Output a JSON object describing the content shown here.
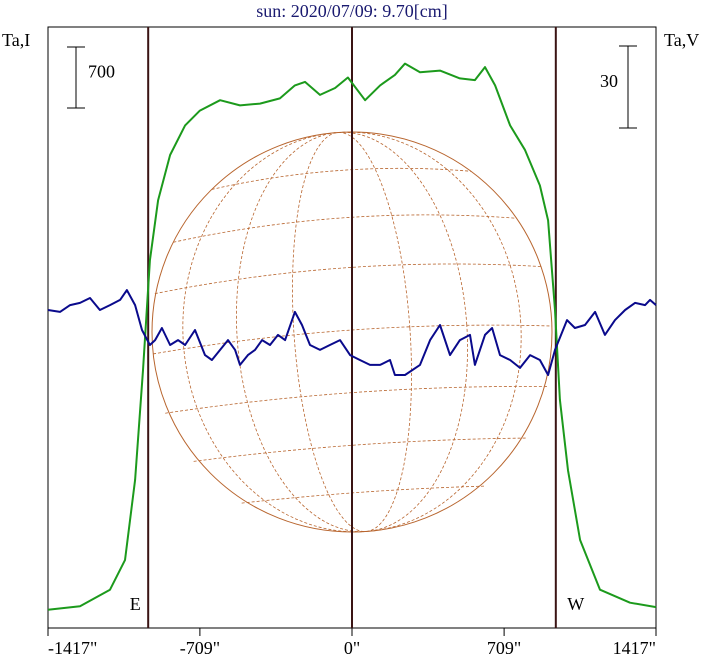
{
  "chart_data": {
    "type": "line",
    "title": "sun: 2020/07/09: 9.70[cm]",
    "y_label": "Ta,I",
    "y2_label": "Ta,V",
    "xlim": [
      -1417,
      1417
    ],
    "xticks": [
      {
        "value": -1417,
        "label": "-1417\""
      },
      {
        "value": -709,
        "label": "-709\""
      },
      {
        "value": 0,
        "label": "0\""
      },
      {
        "value": 709,
        "label": "709\""
      },
      {
        "value": 1417,
        "label": "1417\""
      }
    ],
    "ylim": [
      0,
      6900
    ],
    "y2lim": [
      -110,
      110
    ],
    "i_scale_bar": 700,
    "v_scale_bar": 30,
    "vlines": [
      -950,
      0,
      950
    ],
    "limb_labels": [
      "E",
      "W"
    ],
    "series": [
      {
        "name": "Ta,I",
        "color": "#1c9a1c",
        "x": [
          -1417,
          -1268,
          -1128,
          -1058,
          -1011,
          -974,
          -942,
          -904,
          -848,
          -778,
          -709,
          -615,
          -522,
          -429,
          -336,
          -266,
          -219,
          -149,
          -79,
          -19,
          61,
          131,
          200,
          247,
          317,
          410,
          503,
          573,
          620,
          667,
          737,
          806,
          876,
          914,
          946,
          969,
          1007,
          1063,
          1156,
          1296,
          1417
        ],
        "values": [
          210,
          250,
          440,
          780,
          1700,
          2960,
          4220,
          4910,
          5430,
          5770,
          5940,
          6060,
          6000,
          6020,
          6080,
          6230,
          6270,
          6120,
          6200,
          6320,
          6060,
          6230,
          6350,
          6480,
          6380,
          6400,
          6310,
          6290,
          6440,
          6230,
          5770,
          5490,
          5080,
          4680,
          3650,
          2620,
          1810,
          1010,
          440,
          290,
          240
        ]
      },
      {
        "name": "Ta,V",
        "color": "#0a0a8c",
        "axis": "y2",
        "x": [
          -1417,
          -1361,
          -1314,
          -1268,
          -1221,
          -1175,
          -1128,
          -1081,
          -1049,
          -1011,
          -979,
          -942,
          -918,
          -886,
          -848,
          -811,
          -778,
          -732,
          -685,
          -653,
          -615,
          -578,
          -545,
          -522,
          -485,
          -452,
          -419,
          -382,
          -345,
          -312,
          -266,
          -233,
          -196,
          -149,
          -103,
          -56,
          -9,
          37,
          84,
          131,
          177,
          200,
          247,
          317,
          364,
          410,
          457,
          503,
          550,
          573,
          620,
          653,
          690,
          737,
          783,
          830,
          876,
          914,
          946,
          1002,
          1039,
          1086,
          1133,
          1179,
          1226,
          1273,
          1319,
          1366,
          1389,
          1417
        ],
        "values": [
          6.4,
          5.7,
          8.2,
          9.0,
          10.8,
          6.4,
          8.2,
          10.1,
          13.7,
          8.2,
          -0.9,
          -6.4,
          -4.6,
          -0.2,
          -6.4,
          -4.6,
          -6.4,
          -0.9,
          -10.1,
          -11.9,
          -8.2,
          -4.6,
          -8.2,
          -13.7,
          -10.1,
          -8.2,
          -4.6,
          -6.4,
          -2.7,
          -4.6,
          5.7,
          0.9,
          -6.4,
          -8.2,
          -6.4,
          -4.6,
          -10.1,
          -11.9,
          -13.7,
          -13.7,
          -11.9,
          -17.4,
          -17.4,
          -13.7,
          -4.6,
          0.9,
          -10.1,
          -4.6,
          -2.7,
          -13.7,
          -2.7,
          -0.2,
          -10.1,
          -11.9,
          -14.8,
          -10.1,
          -11.9,
          -17.4,
          -8.2,
          2.7,
          -0.2,
          0.9,
          5.7,
          -2.7,
          2.7,
          6.4,
          9.0,
          8.2,
          10.1,
          8.2
        ]
      }
    ]
  }
}
